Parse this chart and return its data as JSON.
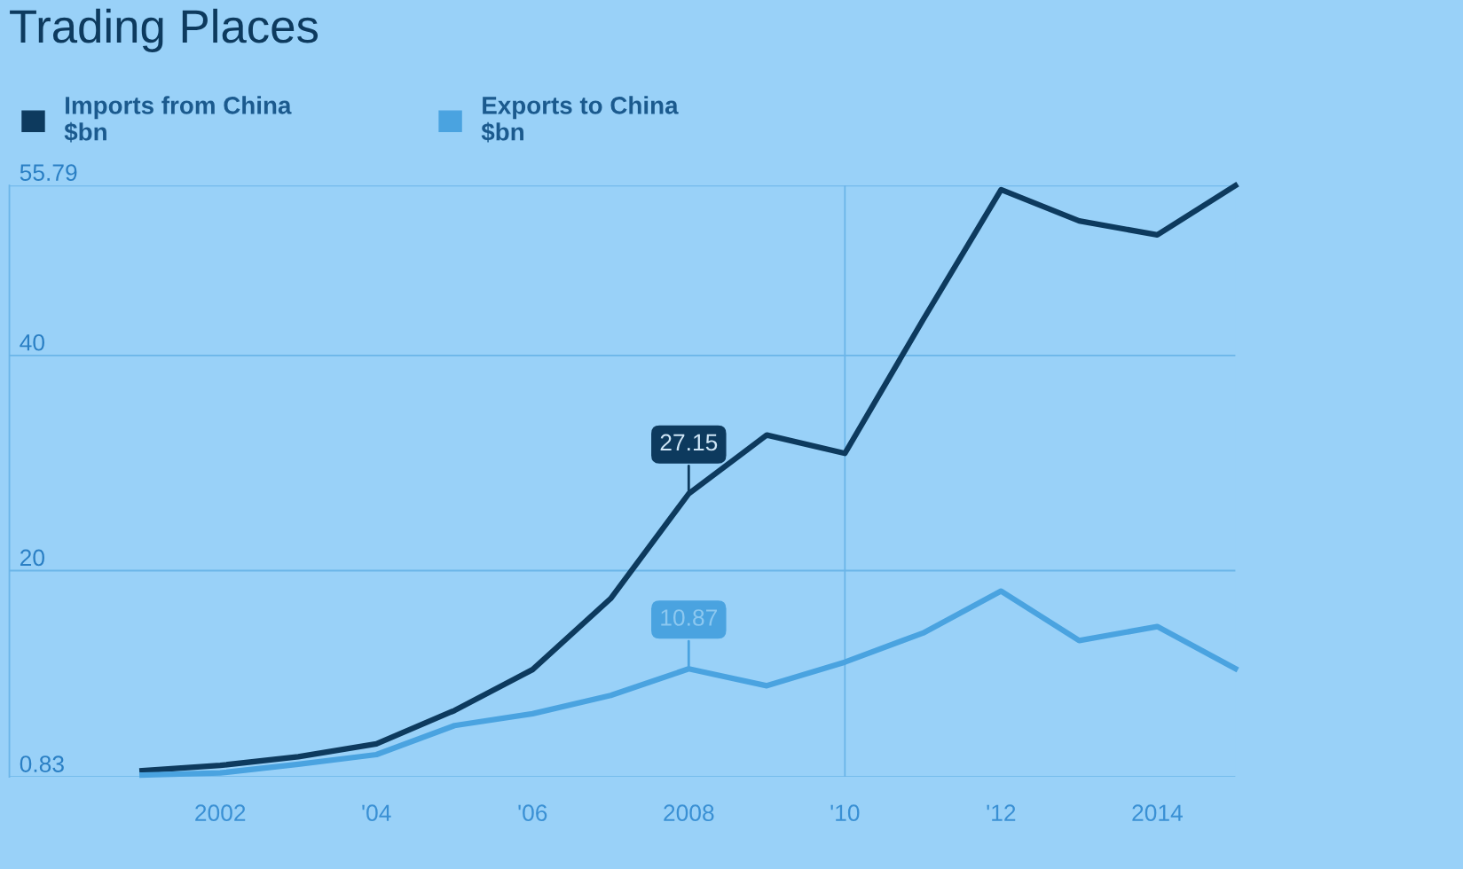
{
  "chart_data": {
    "type": "line",
    "title": "Trading Places",
    "x": [
      2001,
      2002,
      2003,
      2004,
      2005,
      2006,
      2007,
      2008,
      2009,
      2010,
      2011,
      2012,
      2013,
      2014,
      2015
    ],
    "series": [
      {
        "name": "Imports from China\n$bn",
        "color": "#0d3a5e",
        "values": [
          1.4,
          1.9,
          2.7,
          3.9,
          7.0,
          10.8,
          17.4,
          27.15,
          32.6,
          30.9,
          43.3,
          55.4,
          52.5,
          51.2,
          55.79
        ]
      },
      {
        "name": "Exports to China\n$bn",
        "color": "#4aa3e0",
        "values": [
          1.0,
          1.2,
          2.0,
          2.9,
          5.6,
          6.7,
          8.4,
          10.87,
          9.3,
          11.5,
          14.2,
          18.1,
          13.5,
          14.8,
          10.9
        ]
      }
    ],
    "annotations": [
      {
        "text": "27.15",
        "x": 2008,
        "y": 27.15
      },
      {
        "text": "10.87",
        "x": 2008,
        "y": 10.87
      }
    ],
    "xlim": [
      1999.3,
      2015
    ],
    "xticks": [
      {
        "value": 2002,
        "label": "2002"
      },
      {
        "value": 2004,
        "label": "'04"
      },
      {
        "value": 2006,
        "label": "'06"
      },
      {
        "value": 2008,
        "label": "2008"
      },
      {
        "value": 2010,
        "label": "'10"
      },
      {
        "value": 2012,
        "label": "'12"
      },
      {
        "value": 2014,
        "label": "2014"
      }
    ],
    "ylim": [
      0.83,
      55.79
    ],
    "yticks": [
      0.83,
      20,
      40,
      55.79
    ],
    "ref_lines": [
      {
        "axis": "x",
        "value": 2010,
        "color": "#6bb5e8"
      }
    ],
    "grid": "y",
    "legend": "top left",
    "marker": "none",
    "line_style": "solid"
  }
}
